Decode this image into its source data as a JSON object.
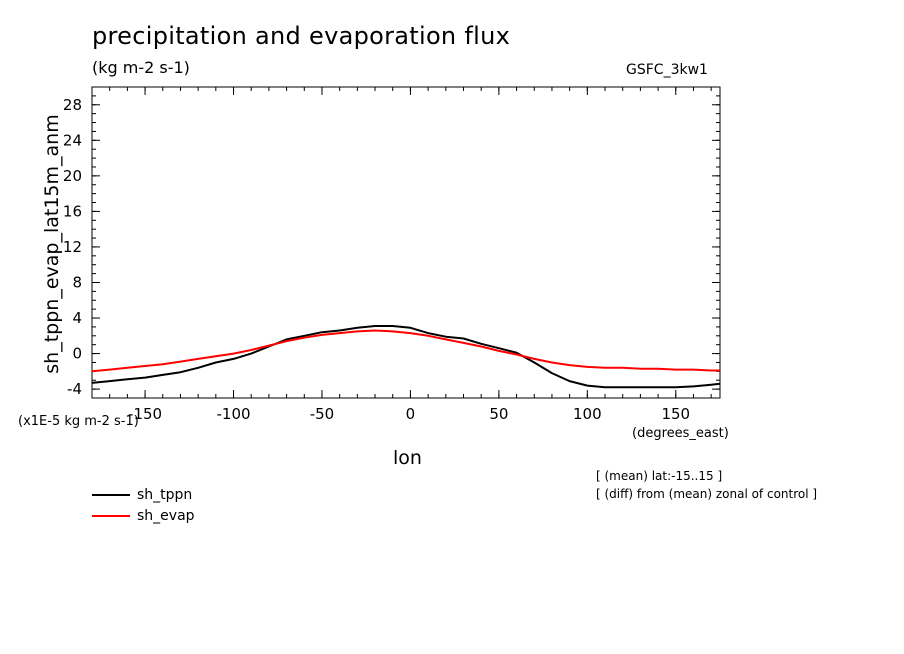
{
  "chart_data": {
    "type": "line",
    "title": "precipitation and evaporation flux",
    "subtitle": "(kg m-2 s-1)",
    "dataset": "GSFC_3kw1",
    "ylabel": "sh_tppn_evap_lat15m_anm",
    "yscale_label": "(x1E-5 kg m-2 s-1)",
    "xlabel": "lon",
    "xunits": "(degrees_east)",
    "notes": [
      "[ (mean) lat:-15..15 ]",
      "[ (diff) from (mean) zonal of control ]"
    ],
    "xlim": [
      -180,
      175
    ],
    "ylim": [
      -5,
      30
    ],
    "xticks": [
      -150,
      -100,
      -50,
      0,
      50,
      100,
      150
    ],
    "xtick_labels": [
      "-150",
      "-100",
      "-50",
      "0",
      "50",
      "100",
      "150"
    ],
    "yticks": [
      -4,
      0,
      4,
      8,
      12,
      16,
      20,
      24,
      28
    ],
    "ytick_labels": [
      "-4",
      "0",
      "4",
      "8",
      "12",
      "16",
      "20",
      "24",
      "28"
    ],
    "grid": false,
    "legend_position": "below-left",
    "series": [
      {
        "name": "sh_tppn",
        "color": "#000000",
        "x": [
          -180,
          -170,
          -160,
          -150,
          -140,
          -130,
          -120,
          -110,
          -100,
          -90,
          -80,
          -70,
          -60,
          -50,
          -40,
          -30,
          -20,
          -10,
          0,
          10,
          20,
          30,
          40,
          50,
          60,
          70,
          80,
          90,
          100,
          110,
          120,
          130,
          140,
          150,
          160,
          170,
          175
        ],
        "y": [
          -3.3,
          -3.1,
          -2.9,
          -2.7,
          -2.4,
          -2.1,
          -1.6,
          -1.0,
          -0.6,
          0.0,
          0.8,
          1.6,
          2.0,
          2.4,
          2.6,
          2.9,
          3.1,
          3.1,
          2.9,
          2.3,
          1.9,
          1.7,
          1.1,
          0.6,
          0.1,
          -1.0,
          -2.2,
          -3.1,
          -3.6,
          -3.8,
          -3.8,
          -3.8,
          -3.8,
          -3.8,
          -3.7,
          -3.5,
          -3.4
        ]
      },
      {
        "name": "sh_evap",
        "color": "#ff0000",
        "x": [
          -180,
          -170,
          -160,
          -150,
          -140,
          -130,
          -120,
          -110,
          -100,
          -90,
          -80,
          -70,
          -60,
          -50,
          -40,
          -30,
          -20,
          -10,
          0,
          10,
          20,
          30,
          40,
          50,
          60,
          70,
          80,
          90,
          100,
          110,
          120,
          130,
          140,
          150,
          160,
          170,
          175
        ],
        "y": [
          -2.0,
          -1.8,
          -1.6,
          -1.4,
          -1.2,
          -0.9,
          -0.6,
          -0.3,
          0.0,
          0.4,
          0.9,
          1.4,
          1.8,
          2.1,
          2.3,
          2.5,
          2.6,
          2.5,
          2.3,
          2.0,
          1.6,
          1.2,
          0.8,
          0.3,
          -0.1,
          -0.6,
          -1.0,
          -1.3,
          -1.5,
          -1.6,
          -1.6,
          -1.7,
          -1.7,
          -1.8,
          -1.8,
          -1.9,
          -1.9
        ]
      }
    ]
  }
}
